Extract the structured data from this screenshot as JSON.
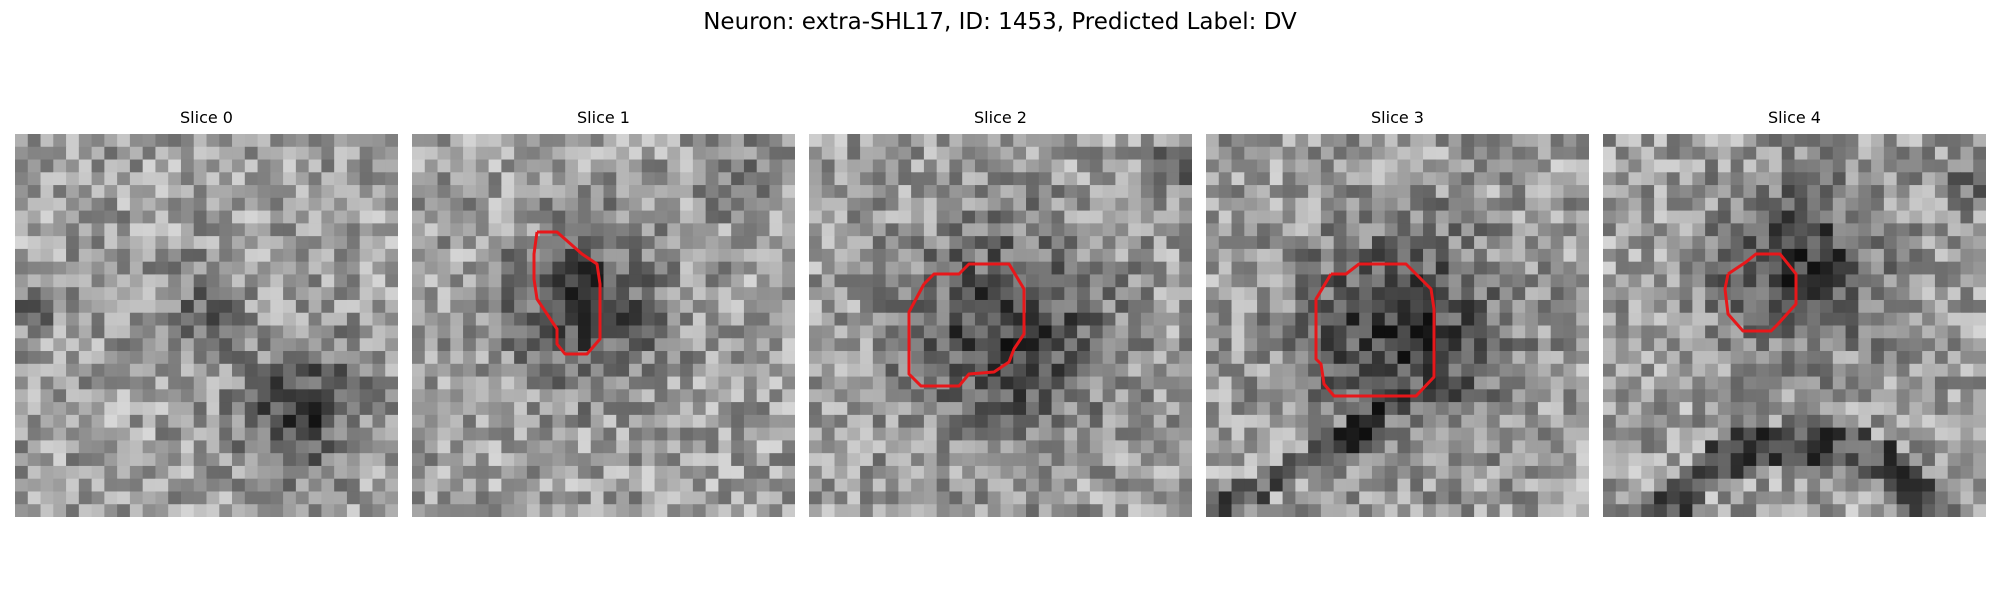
{
  "figure": {
    "title": "Neuron: extra-SHL17, ID: 1453, Predicted Label: DV"
  },
  "panels": [
    {
      "title": "Slice 0",
      "has_contour": false
    },
    {
      "title": "Slice 1",
      "has_contour": true
    },
    {
      "title": "Slice 2",
      "has_contour": true
    },
    {
      "title": "Slice 3",
      "has_contour": true
    },
    {
      "title": "Slice 4",
      "has_contour": true
    }
  ],
  "colors": {
    "contour": "#e8171a",
    "background": "#ffffff"
  }
}
